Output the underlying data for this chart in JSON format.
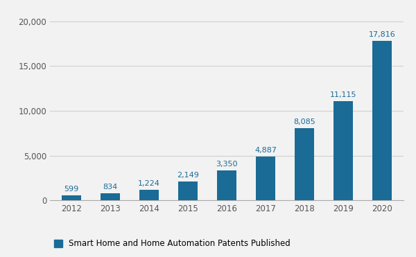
{
  "years": [
    "2012",
    "2013",
    "2014",
    "2015",
    "2016",
    "2017",
    "2018",
    "2019",
    "2020"
  ],
  "values": [
    599,
    834,
    1224,
    2149,
    3350,
    4887,
    8085,
    11115,
    17816
  ],
  "bar_color": "#1a6b96",
  "label_color": "#1a6b96",
  "background_color": "#f2f2f2",
  "yticks": [
    0,
    5000,
    10000,
    15000,
    20000
  ],
  "ylim": [
    0,
    21500
  ],
  "legend_label": "Smart Home and Home Automation Patents Published",
  "label_fontsize": 8,
  "tick_fontsize": 8.5,
  "legend_fontsize": 8.5,
  "bar_width": 0.5
}
